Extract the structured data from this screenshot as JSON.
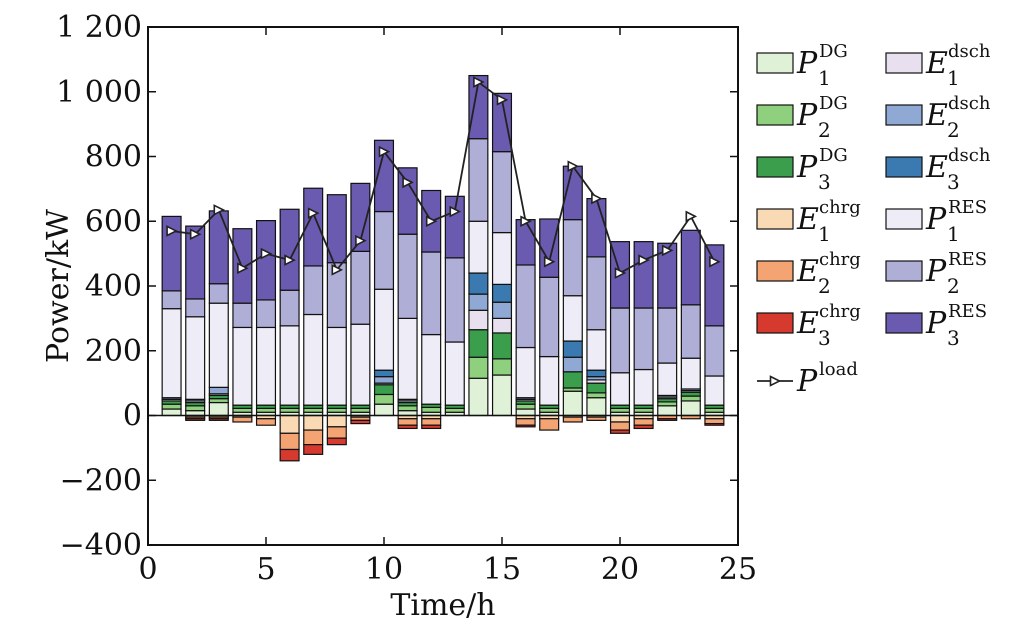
{
  "chart_data": {
    "type": "bar",
    "stacked": true,
    "xlabel": "Time/h",
    "ylabel": "Power/kW",
    "xlim": [
      0,
      25
    ],
    "ylim": [
      -400,
      1200
    ],
    "xticks": [
      "0",
      "5",
      "10",
      "15",
      "20",
      "25"
    ],
    "yticks": [
      "−400",
      "−200",
      "0",
      "200",
      "400",
      "600",
      "800",
      "1 000",
      "1 200"
    ],
    "x": [
      1,
      2,
      3,
      4,
      5,
      6,
      7,
      8,
      9,
      10,
      11,
      12,
      13,
      14,
      15,
      16,
      17,
      18,
      19,
      20,
      21,
      22,
      23,
      24
    ],
    "positive_series": [
      {
        "key": "P1_DG",
        "main": "P",
        "sup": "DG",
        "sub": "1",
        "color": "#dff2d8",
        "values": [
          20,
          15,
          40,
          10,
          10,
          10,
          10,
          10,
          10,
          35,
          15,
          10,
          10,
          115,
          125,
          20,
          10,
          75,
          55,
          10,
          10,
          30,
          45,
          10
        ]
      },
      {
        "key": "P2_DG",
        "main": "P",
        "sup": "DG",
        "sub": "2",
        "color": "#8fd07f",
        "values": [
          15,
          15,
          12,
          12,
          12,
          12,
          12,
          12,
          12,
          30,
          15,
          15,
          12,
          65,
          50,
          15,
          12,
          10,
          15,
          12,
          12,
          12,
          15,
          12
        ]
      },
      {
        "key": "P3_DG",
        "main": "P",
        "sup": "DG",
        "sub": "3",
        "color": "#3a9e4c",
        "values": [
          10,
          10,
          10,
          10,
          10,
          10,
          10,
          10,
          10,
          30,
          10,
          10,
          10,
          85,
          80,
          10,
          10,
          50,
          30,
          10,
          10,
          10,
          12,
          10
        ]
      },
      {
        "key": "E1_dsch",
        "main": "E",
        "sup": "dsch",
        "sub": "1",
        "color": "#e8e0ef",
        "values": [
          5,
          5,
          5,
          0,
          0,
          0,
          0,
          0,
          0,
          5,
          5,
          0,
          0,
          60,
          45,
          5,
          0,
          0,
          10,
          0,
          0,
          5,
          5,
          0
        ]
      },
      {
        "key": "E2_dsch",
        "main": "E",
        "sup": "dsch",
        "sub": "2",
        "color": "#8fa8d4",
        "values": [
          5,
          5,
          20,
          0,
          0,
          0,
          0,
          0,
          0,
          20,
          5,
          0,
          0,
          50,
          50,
          5,
          0,
          45,
          10,
          0,
          0,
          5,
          5,
          0
        ]
      },
      {
        "key": "E3_dsch",
        "main": "E",
        "sup": "dsch",
        "sub": "3",
        "color": "#3a7ab0",
        "values": [
          0,
          0,
          0,
          0,
          0,
          0,
          0,
          0,
          0,
          20,
          0,
          0,
          0,
          65,
          55,
          0,
          0,
          50,
          20,
          0,
          0,
          0,
          0,
          0
        ]
      },
      {
        "key": "P1_RES",
        "main": "P",
        "sup": "RES",
        "sub": "1",
        "color": "#eeecf6",
        "values": [
          275,
          255,
          260,
          240,
          240,
          245,
          280,
          240,
          250,
          250,
          250,
          215,
          195,
          160,
          160,
          155,
          150,
          140,
          125,
          100,
          110,
          100,
          95,
          90
        ]
      },
      {
        "key": "P2_RES",
        "main": "P",
        "sup": "RES",
        "sub": "2",
        "color": "#aeaed6",
        "values": [
          55,
          55,
          60,
          75,
          85,
          110,
          150,
          200,
          225,
          240,
          260,
          255,
          260,
          255,
          250,
          255,
          245,
          235,
          225,
          200,
          190,
          170,
          165,
          155
        ]
      },
      {
        "key": "P3_RES",
        "main": "P",
        "sup": "RES",
        "sub": "3",
        "color": "#6a5bb0",
        "values": [
          230,
          225,
          225,
          230,
          245,
          250,
          240,
          210,
          210,
          220,
          205,
          190,
          190,
          195,
          180,
          140,
          180,
          165,
          180,
          205,
          205,
          200,
          230,
          250
        ]
      }
    ],
    "negative_series": [
      {
        "key": "E1_chrg",
        "main": "E",
        "sup": "chrg",
        "sub": "1",
        "color": "#fad9b5",
        "values": [
          0,
          5,
          5,
          5,
          10,
          55,
          45,
          35,
          5,
          0,
          10,
          10,
          0,
          0,
          0,
          10,
          10,
          5,
          5,
          20,
          10,
          0,
          0,
          10
        ]
      },
      {
        "key": "E2_chrg",
        "main": "E",
        "sup": "chrg",
        "sub": "2",
        "color": "#f4a373",
        "values": [
          0,
          5,
          5,
          15,
          20,
          50,
          45,
          35,
          10,
          0,
          20,
          20,
          0,
          0,
          0,
          20,
          35,
          15,
          10,
          25,
          20,
          10,
          10,
          15
        ]
      },
      {
        "key": "E3_chrg",
        "main": "E",
        "sup": "chrg",
        "sub": "3",
        "color": "#d63a2f",
        "values": [
          0,
          5,
          5,
          0,
          0,
          35,
          30,
          20,
          10,
          0,
          10,
          10,
          0,
          0,
          0,
          5,
          0,
          0,
          0,
          10,
          10,
          5,
          0,
          5
        ]
      }
    ],
    "line_series": {
      "key": "P_load",
      "main": "P",
      "sup": "load",
      "color": "#222222",
      "values": [
        570,
        560,
        635,
        455,
        500,
        480,
        625,
        450,
        540,
        815,
        720,
        600,
        630,
        1030,
        975,
        600,
        475,
        770,
        670,
        440,
        480,
        510,
        615,
        475
      ]
    }
  }
}
